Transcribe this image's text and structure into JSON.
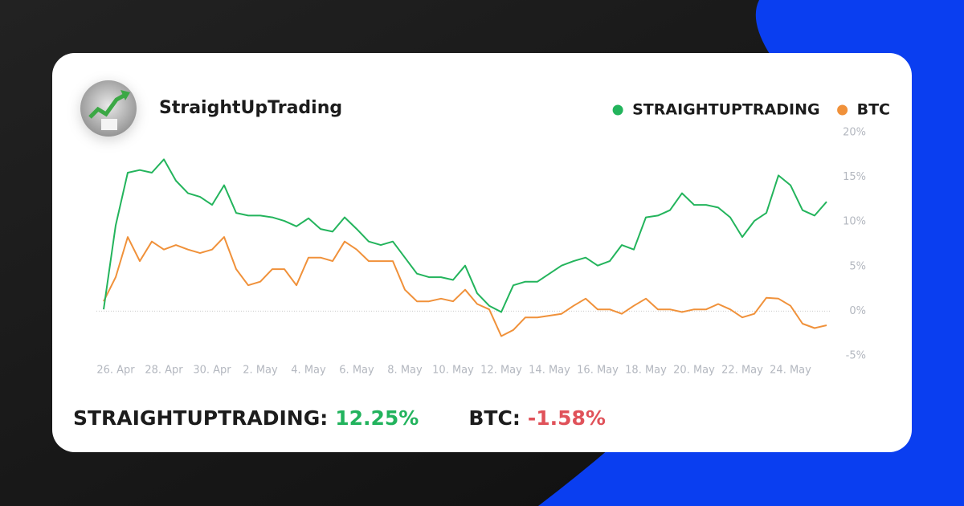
{
  "header": {
    "name": "StraightUpTrading"
  },
  "chart_data": {
    "type": "line",
    "categories": [
      null,
      "26. Apr",
      null,
      null,
      null,
      "28. Apr",
      null,
      null,
      null,
      "30. Apr",
      null,
      null,
      null,
      "2. May",
      null,
      null,
      null,
      "4. May",
      null,
      null,
      null,
      "6. May",
      null,
      null,
      null,
      "8. May",
      null,
      null,
      null,
      "10. May",
      null,
      null,
      null,
      "12. May",
      null,
      null,
      null,
      "14. May",
      null,
      null,
      null,
      "16. May",
      null,
      null,
      null,
      "18. May",
      null,
      null,
      null,
      "20. May",
      null,
      null,
      null,
      "22. May",
      null,
      null,
      null,
      "24. May",
      null,
      null,
      null
    ],
    "series": [
      {
        "name": "STRAIGHTUPTRADING",
        "color": "#23b45c",
        "values": [
          0.2,
          9.6,
          15.5,
          15.8,
          15.5,
          17,
          14.6,
          13.2,
          12.8,
          11.9,
          14.1,
          11,
          10.7,
          10.7,
          10.5,
          10.1,
          9.5,
          10.4,
          9.2,
          8.9,
          10.5,
          9.2,
          7.8,
          7.4,
          7.8,
          6,
          4.2,
          3.8,
          3.8,
          3.5,
          5.1,
          2,
          0.6,
          -0.1,
          2.9,
          3.3,
          3.3,
          4.2,
          5.1,
          5.6,
          6,
          5.1,
          5.6,
          7.4,
          6.9,
          10.5,
          10.7,
          11.3,
          13.2,
          11.9,
          11.9,
          11.6,
          10.5,
          8.3,
          10.1,
          11,
          15.2,
          14.1,
          11.3,
          10.7,
          12.25
        ]
      },
      {
        "name": "BTC",
        "color": "#f0913a",
        "values": [
          1.1,
          3.8,
          8.3,
          5.6,
          7.8,
          6.9,
          7.4,
          6.9,
          6.5,
          6.9,
          8.3,
          4.7,
          2.9,
          3.3,
          4.7,
          4.7,
          2.9,
          6,
          6,
          5.6,
          7.8,
          6.9,
          5.6,
          5.6,
          5.6,
          2.4,
          1.1,
          1.1,
          1.4,
          1.1,
          2.4,
          0.8,
          0.2,
          -2.8,
          -2.1,
          -0.7,
          -0.7,
          -0.5,
          -0.3,
          0.6,
          1.4,
          0.2,
          0.2,
          -0.3,
          0.6,
          1.4,
          0.2,
          0.2,
          -0.1,
          0.2,
          0.2,
          0.8,
          0.2,
          -0.7,
          -0.3,
          1.5,
          1.4,
          0.6,
          -1.4,
          -1.9,
          -1.58
        ]
      }
    ],
    "ylim": [
      -5,
      20
    ],
    "yticks": [
      {
        "value": -5,
        "label": "-5%"
      },
      {
        "value": 0,
        "label": "0%"
      },
      {
        "value": 5,
        "label": "5%"
      },
      {
        "value": 10,
        "label": "10%"
      },
      {
        "value": 15,
        "label": "15%"
      },
      {
        "value": 20,
        "label": "20%"
      }
    ],
    "zero_line": true,
    "legend": "top-right"
  },
  "summary": [
    {
      "label": "STRAIGHTUPTRADING:",
      "value": "12.25%",
      "color": "#22b35d"
    },
    {
      "label": "BTC:",
      "value": "-1.58%",
      "color": "#e0525a"
    }
  ]
}
